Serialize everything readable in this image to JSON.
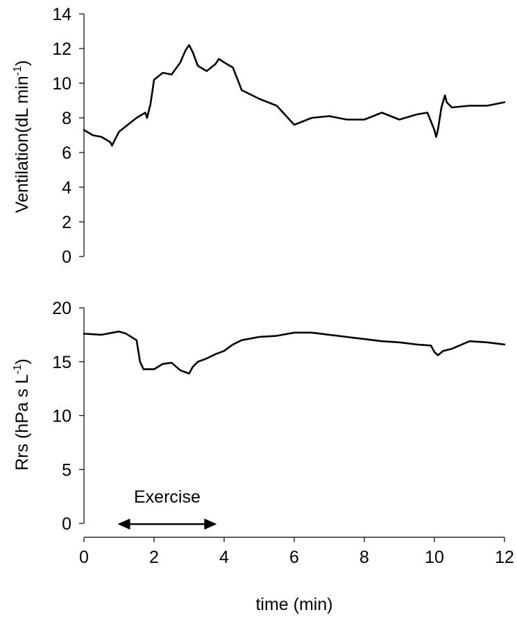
{
  "chart_data": [
    {
      "type": "line",
      "ylabel": "Ventilation(dL min",
      "ylabel_sup": "-1",
      "ylabel_close": ")",
      "ylim": [
        0,
        14
      ],
      "yticks": [
        0,
        2,
        4,
        6,
        8,
        10,
        12,
        14
      ],
      "xlim": [
        0,
        12
      ],
      "grid": false,
      "series": [
        {
          "x": [
            0,
            0.25,
            0.5,
            0.75,
            0.8,
            0.9,
            1.0,
            1.25,
            1.5,
            1.75,
            1.8,
            1.9,
            2.0,
            2.25,
            2.5,
            2.75,
            2.9,
            3.0,
            3.1,
            3.25,
            3.5,
            3.75,
            3.85,
            4.0,
            4.25,
            4.5,
            5.0,
            5.5,
            6.0,
            6.25,
            6.5,
            7.0,
            7.5,
            8.0,
            8.5,
            9.0,
            9.5,
            9.8,
            10.0,
            10.05,
            10.1,
            10.2,
            10.3,
            10.35,
            10.5,
            11.0,
            11.5,
            12.0
          ],
          "y": [
            7.3,
            7.0,
            6.9,
            6.6,
            6.4,
            6.8,
            7.2,
            7.6,
            8.0,
            8.3,
            8.0,
            8.8,
            10.2,
            10.6,
            10.5,
            11.2,
            11.9,
            12.2,
            11.8,
            11.0,
            10.7,
            11.1,
            11.4,
            11.2,
            10.9,
            9.6,
            9.1,
            8.7,
            7.6,
            7.8,
            8.0,
            8.1,
            7.9,
            7.9,
            8.3,
            7.9,
            8.2,
            8.3,
            7.3,
            6.9,
            7.3,
            8.6,
            9.3,
            8.9,
            8.6,
            8.7,
            8.7,
            8.9
          ]
        }
      ]
    },
    {
      "type": "line",
      "ylabel": "Rrs (hPa s L",
      "ylabel_sup": "-1",
      "ylabel_close": ")",
      "ylim": [
        0,
        20
      ],
      "yticks": [
        0,
        5,
        10,
        15,
        20
      ],
      "xlim": [
        0,
        12
      ],
      "xticks": [
        0,
        2,
        4,
        6,
        8,
        10,
        12
      ],
      "xlabel": "time (min)",
      "grid": false,
      "series": [
        {
          "x": [
            0,
            0.5,
            1.0,
            1.2,
            1.5,
            1.6,
            1.7,
            2.0,
            2.25,
            2.5,
            2.75,
            3.0,
            3.1,
            3.25,
            3.5,
            3.75,
            4.0,
            4.25,
            4.5,
            5.0,
            5.5,
            6.0,
            6.5,
            7.0,
            7.5,
            8.0,
            8.5,
            9.0,
            9.5,
            9.9,
            10.0,
            10.1,
            10.25,
            10.5,
            11.0,
            11.5,
            12.0
          ],
          "y": [
            17.6,
            17.5,
            17.8,
            17.6,
            17.0,
            15.0,
            14.3,
            14.3,
            14.8,
            14.9,
            14.2,
            13.9,
            14.5,
            15.0,
            15.3,
            15.7,
            16.0,
            16.6,
            17.0,
            17.3,
            17.4,
            17.7,
            17.7,
            17.5,
            17.3,
            17.1,
            16.9,
            16.8,
            16.6,
            16.5,
            15.9,
            15.6,
            16.0,
            16.2,
            16.9,
            16.8,
            16.6
          ]
        }
      ],
      "annotations": [
        {
          "text": "Exercise",
          "x_start": 1.0,
          "x_end": 3.75,
          "y": -0.2
        }
      ]
    }
  ]
}
